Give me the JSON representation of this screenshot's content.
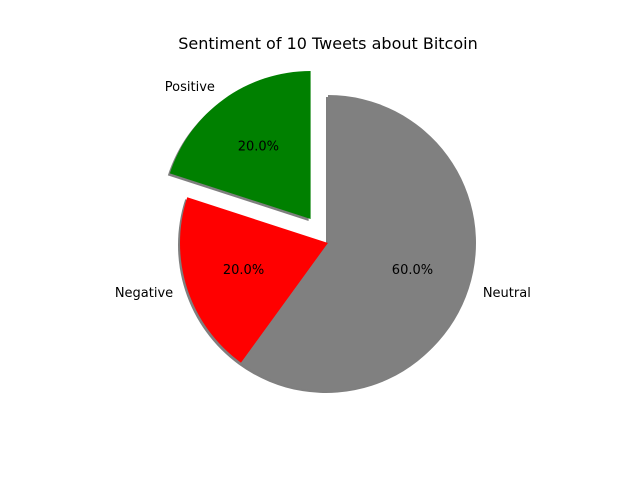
{
  "chart_data": {
    "type": "pie",
    "title": "Sentiment of 10 Tweets about Bitcoin",
    "slices": [
      {
        "label": "Positive",
        "value": 2,
        "percent_label": "20.0%",
        "color": "#008000",
        "exploded": true
      },
      {
        "label": "Negative",
        "value": 2,
        "percent_label": "20.0%",
        "color": "#ff0000",
        "exploded": false
      },
      {
        "label": "Neutral",
        "value": 6,
        "percent_label": "60.0%",
        "color": "#808080",
        "exploded": false
      }
    ],
    "start_angle": 90,
    "shadow": true,
    "edge_color": "none"
  }
}
